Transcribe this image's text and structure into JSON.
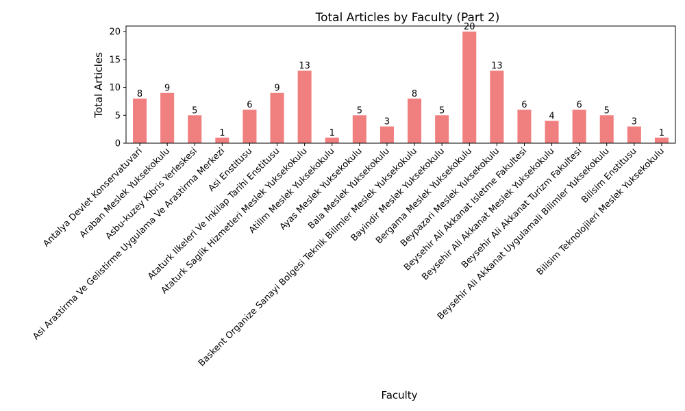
{
  "chart_data": {
    "type": "bar",
    "title": "Total Articles by Faculty (Part 2)",
    "xlabel": "Faculty",
    "ylabel": "Total Articles",
    "categories": [
      "Antalya Devlet Konservatuvari",
      "Araban Meslek Yuksekokulu",
      "Asbu-kuzey Kibris Yerleskesi",
      "Asi Arastirma Ve Gelistirme Uygulama Ve Arastirma Merkezi",
      "Asi Enstitusu",
      "Ataturk Ilkeleri Ve Inkilap Tarihi Enstitusu",
      "Ataturk Saglik Hizmetleri Meslek Yuksekokulu",
      "Atilim Meslek Yuksekokulu",
      "Ayas Meslek Yuksekokulu",
      "Bala Meslek Yuksekokulu",
      "Baskent Organize Sanayi Bolgesi Teknik Bilimler Meslek Yuksekokulu",
      "Bayindir Meslek Yuksekokulu",
      "Bergama Meslek Yuksekokulu",
      "Beypazari Meslek Yuksekokulu",
      "Beysehir Ali Akkanat Isletme Fakultesi",
      "Beysehir Ali Akkanat Meslek Yuksekokulu",
      "Beysehir Ali Akkanat Turizm Fakultesi",
      "Beysehir Ali Akkanat Uygulamali Bilimler Yuksekokulu",
      "Bilisim Enstitusu",
      "Bilisim Teknolojileri Meslek Yuksekokulu"
    ],
    "values": [
      8,
      9,
      5,
      1,
      6,
      9,
      13,
      1,
      5,
      3,
      8,
      5,
      20,
      13,
      6,
      4,
      6,
      5,
      3,
      1
    ],
    "ylim": [
      0,
      21
    ],
    "yticks": [
      0,
      5,
      10,
      15,
      20
    ],
    "bar_color": "#f08080",
    "data_labels": true,
    "grid": false,
    "legend": false
  }
}
